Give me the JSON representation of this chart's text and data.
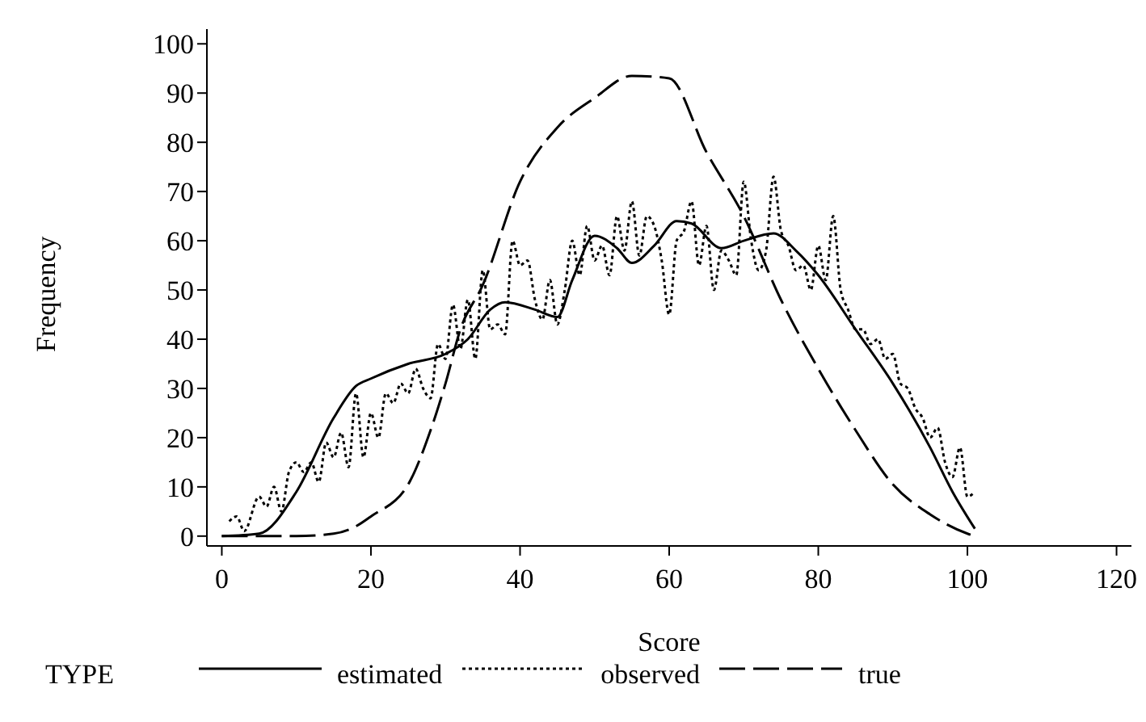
{
  "chart_data": {
    "type": "line",
    "xlabel": "Score",
    "ylabel": "Frequency",
    "legend_title": "TYPE",
    "legend": "bottom",
    "grid": false,
    "marker": "none",
    "xlim": [
      -2,
      122
    ],
    "xticks": [
      0,
      20,
      40,
      60,
      80,
      100,
      120
    ],
    "ylim": [
      -2,
      103
    ],
    "yticks": [
      0,
      10,
      20,
      30,
      40,
      50,
      60,
      70,
      80,
      90,
      100
    ],
    "series": [
      {
        "name": "estimated",
        "color": "#000000",
        "line_style": "solid",
        "x": [
          0,
          5,
          10,
          15,
          18,
          20,
          25,
          30,
          33,
          36,
          38,
          42,
          45,
          47,
          50,
          53,
          55,
          58,
          61,
          63,
          67,
          70,
          74,
          77,
          80,
          85,
          90,
          95,
          98,
          101
        ],
        "values": [
          0,
          0.5,
          9,
          24,
          30.5,
          32,
          35,
          37,
          40,
          46,
          47.5,
          46,
          44.5,
          52,
          61,
          58.5,
          55.5,
          59,
          64,
          63.5,
          58.5,
          60,
          61.5,
          58,
          53,
          42,
          31,
          18,
          9,
          1.5
        ]
      },
      {
        "name": "observed",
        "color": "#000000",
        "line_style": "dotted",
        "x": [
          1,
          2,
          3,
          5,
          6,
          7,
          8,
          9,
          10,
          11,
          12,
          13,
          14,
          15,
          16,
          17,
          18,
          19,
          20,
          21,
          22,
          23,
          24,
          25,
          26,
          27,
          28,
          29,
          30,
          31,
          32,
          33,
          34,
          35,
          36,
          37,
          38,
          39,
          40,
          41,
          42,
          43,
          44,
          45,
          46,
          47,
          48,
          49,
          50,
          51,
          52,
          53,
          54,
          55,
          56,
          57,
          58,
          59,
          60,
          61,
          62,
          63,
          64,
          65,
          66,
          67,
          68,
          69,
          70,
          71,
          72,
          73,
          74,
          75,
          76,
          77,
          78,
          79,
          80,
          81,
          82,
          83,
          84,
          85,
          86,
          87,
          88,
          89,
          90,
          91,
          92,
          93,
          94,
          95,
          96,
          97,
          98,
          99,
          100,
          101
        ],
        "values": [
          3,
          4,
          1,
          8,
          6,
          10,
          5,
          13,
          15,
          13,
          15,
          11,
          19,
          16,
          21,
          14,
          29,
          16,
          25,
          20,
          29,
          27,
          31,
          29,
          34,
          30,
          28,
          39,
          36,
          47,
          38,
          48,
          36,
          54,
          42,
          43,
          41,
          60,
          55,
          56,
          48,
          44,
          52,
          43,
          50,
          60,
          53,
          63,
          56,
          59,
          53,
          65,
          58,
          68,
          57,
          65,
          63,
          56,
          45,
          60,
          62,
          68,
          55,
          63,
          50,
          58,
          56,
          53,
          72,
          60,
          54,
          58,
          73,
          62,
          59,
          54,
          55,
          50,
          59,
          52,
          65,
          50,
          46,
          42,
          42,
          39,
          40,
          36,
          37,
          31,
          30,
          26,
          24,
          20,
          22,
          15,
          12,
          18,
          8,
          9
        ]
      },
      {
        "name": "true",
        "color": "#000000",
        "line_style": "dashed",
        "x": [
          0,
          10,
          15,
          18,
          20,
          25,
          28,
          30,
          32,
          35,
          40,
          45,
          50,
          55,
          60,
          65,
          70,
          75,
          80,
          85,
          90,
          95,
          100,
          101
        ],
        "values": [
          0,
          0,
          0.5,
          2,
          4,
          10.5,
          21.5,
          31,
          42,
          51,
          72,
          83,
          89,
          93.5,
          93,
          78,
          65,
          48,
          34,
          21.5,
          10.5,
          4.4,
          0.5,
          0
        ]
      }
    ]
  }
}
